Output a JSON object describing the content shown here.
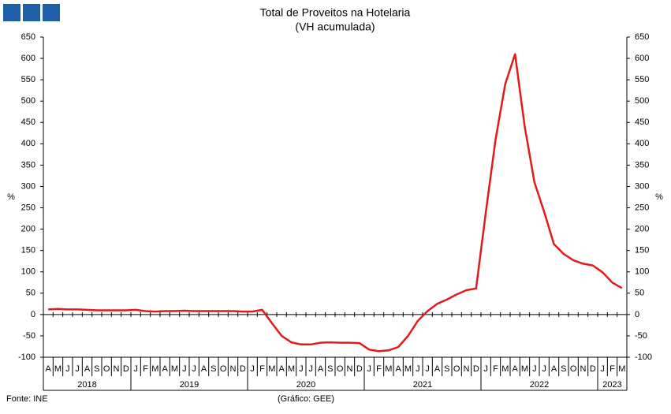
{
  "chart_data": {
    "type": "line",
    "title": "Total de Proveitos na Hotelaria",
    "subtitle": "(VH acumulada)",
    "y_label": "%",
    "y2_label": "%",
    "source": "Fonte: INE",
    "credit": "(Gráfico: GEE)",
    "categories": [
      "A",
      "M",
      "J",
      "J",
      "A",
      "S",
      "O",
      "N",
      "D",
      "J",
      "F",
      "M",
      "A",
      "M",
      "J",
      "J",
      "A",
      "S",
      "O",
      "N",
      "D",
      "J",
      "F",
      "M",
      "A",
      "M",
      "J",
      "J",
      "A",
      "S",
      "O",
      "N",
      "D",
      "J",
      "F",
      "M",
      "A",
      "M",
      "J",
      "J",
      "A",
      "S",
      "O",
      "N",
      "D",
      "J",
      "F",
      "M",
      "A",
      "M",
      "J",
      "J",
      "A",
      "S",
      "O",
      "N",
      "D",
      "J",
      "F",
      "M"
    ],
    "years": [
      "2018",
      "2019",
      "2020",
      "2021",
      "2022",
      "2023"
    ],
    "series": [
      {
        "name": "Total de Proveitos",
        "color": "#e31a1c",
        "values": [
          12,
          13,
          12,
          12,
          11,
          10,
          10,
          10,
          10,
          11,
          8,
          7,
          8,
          8,
          9,
          8,
          8,
          8,
          8,
          8,
          7,
          7,
          11,
          -20,
          -50,
          -65,
          -70,
          -70,
          -66,
          -65,
          -66,
          -66,
          -67,
          -82,
          -86,
          -84,
          -76,
          -50,
          -15,
          8,
          25,
          35,
          47,
          57,
          61,
          240,
          410,
          540,
          610,
          440,
          310,
          240,
          165,
          142,
          127,
          119,
          115,
          99,
          75,
          62
        ]
      }
    ],
    "ylim": [
      -100,
      650
    ],
    "yticks": [
      -100,
      -50,
      0,
      50,
      100,
      150,
      200,
      250,
      300,
      350,
      400,
      450,
      500,
      550,
      600,
      650
    ],
    "y2lim": [
      -100,
      650
    ],
    "y2ticks": [
      -100,
      -50,
      0,
      50,
      100,
      150,
      200,
      250,
      300,
      350,
      400,
      450,
      500,
      550,
      600,
      650
    ]
  }
}
